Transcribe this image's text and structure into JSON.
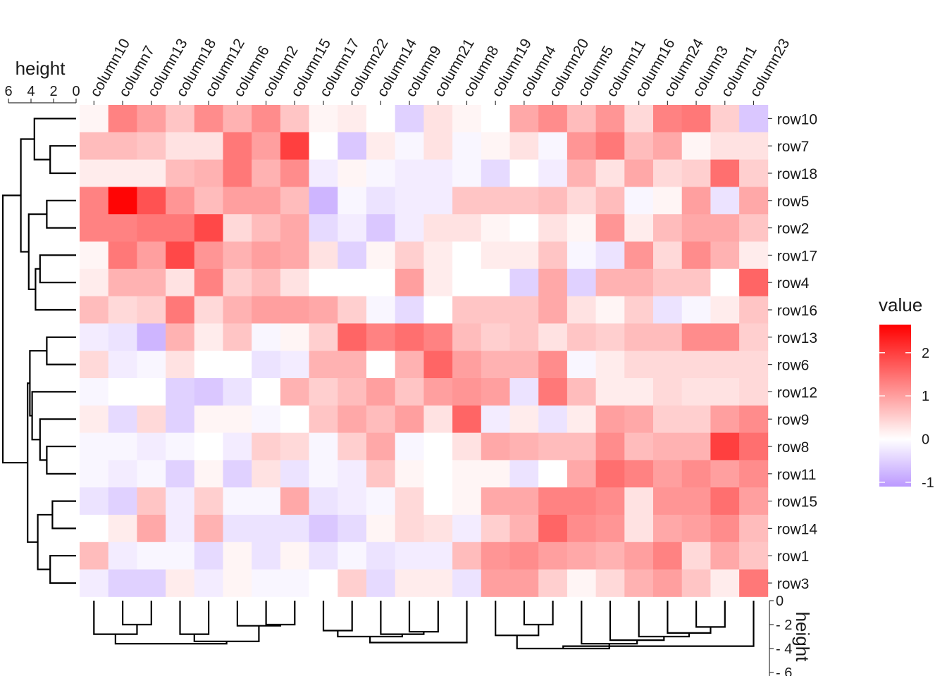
{
  "chart_data": {
    "type": "heatmap",
    "title": "",
    "columns": [
      "column10",
      "column7",
      "column13",
      "column18",
      "column12",
      "column6",
      "column2",
      "column15",
      "column17",
      "column22",
      "column14",
      "column9",
      "column21",
      "column8",
      "column19",
      "column4",
      "column20",
      "column5",
      "column11",
      "column16",
      "column24",
      "column3",
      "column1",
      "column23"
    ],
    "rows": [
      "row10",
      "row7",
      "row18",
      "row5",
      "row2",
      "row17",
      "row4",
      "row16",
      "row13",
      "row6",
      "row12",
      "row9",
      "row8",
      "row11",
      "row15",
      "row14",
      "row1",
      "row3"
    ],
    "values": [
      [
        0.1,
        1.3,
        1.0,
        0.6,
        1.2,
        0.8,
        1.2,
        0.6,
        0.1,
        0.2,
        0.0,
        -0.5,
        0.3,
        0.1,
        0.0,
        0.9,
        1.2,
        0.7,
        1.1,
        0.4,
        1.3,
        1.4,
        0.5,
        -0.6
      ],
      [
        0.7,
        0.7,
        0.6,
        0.3,
        0.3,
        1.4,
        1.0,
        2.0,
        0.0,
        -0.6,
        0.2,
        -0.1,
        0.3,
        -0.1,
        0.1,
        0.3,
        -0.1,
        1.1,
        1.4,
        0.7,
        0.9,
        0.1,
        0.3,
        0.3
      ],
      [
        0.2,
        0.2,
        0.2,
        0.7,
        0.8,
        1.4,
        0.8,
        1.2,
        -0.2,
        0.1,
        -0.1,
        -0.2,
        -0.2,
        -0.1,
        -0.4,
        0.0,
        -0.2,
        0.8,
        0.3,
        0.9,
        0.4,
        0.5,
        1.5,
        0.5
      ],
      [
        1.3,
        2.6,
        1.8,
        1.1,
        0.7,
        1.0,
        1.0,
        0.7,
        -0.8,
        -0.1,
        -0.3,
        -0.2,
        -0.2,
        0.6,
        0.6,
        0.6,
        0.7,
        0.4,
        0.7,
        -0.1,
        0.1,
        1.0,
        -0.3,
        0.9
      ],
      [
        1.3,
        1.3,
        1.4,
        1.4,
        1.9,
        0.4,
        0.7,
        0.9,
        -0.4,
        -0.2,
        -0.6,
        -0.2,
        0.3,
        0.3,
        0.1,
        0.0,
        0.3,
        0.1,
        1.1,
        0.2,
        0.7,
        0.9,
        0.9,
        0.6
      ],
      [
        0.1,
        1.4,
        1.0,
        1.9,
        1.1,
        0.8,
        1.0,
        0.9,
        0.3,
        -0.5,
        0.1,
        0.5,
        0.2,
        0.0,
        0.2,
        0.2,
        0.6,
        -0.1,
        -0.3,
        1.1,
        0.4,
        1.2,
        0.8,
        0.2
      ],
      [
        0.2,
        0.8,
        0.8,
        0.3,
        1.3,
        0.5,
        0.7,
        0.3,
        0.0,
        0.0,
        0.0,
        1.0,
        0.2,
        0.0,
        0.0,
        -0.5,
        0.9,
        -0.5,
        0.8,
        0.8,
        0.6,
        0.6,
        0.0,
        1.6
      ],
      [
        0.7,
        0.4,
        0.5,
        1.4,
        0.4,
        0.8,
        1.0,
        1.0,
        0.9,
        0.5,
        -0.1,
        -0.4,
        0.0,
        0.6,
        0.6,
        0.6,
        0.9,
        0.3,
        0.1,
        0.5,
        -0.3,
        -0.1,
        0.2,
        0.6
      ],
      [
        -0.2,
        -0.3,
        -0.8,
        0.8,
        0.2,
        0.6,
        -0.1,
        0.1,
        0.5,
        1.6,
        1.3,
        1.5,
        1.3,
        0.7,
        0.5,
        0.6,
        0.3,
        0.6,
        0.5,
        0.7,
        0.7,
        1.2,
        1.2,
        0.5
      ],
      [
        0.4,
        -0.2,
        -0.1,
        0.3,
        0.0,
        0.0,
        -0.3,
        -0.2,
        0.8,
        0.8,
        0.0,
        0.8,
        1.6,
        1.0,
        0.8,
        0.8,
        1.2,
        -0.1,
        0.2,
        0.4,
        0.4,
        0.4,
        0.4,
        0.4
      ],
      [
        -0.1,
        0.0,
        0.0,
        -0.5,
        -0.6,
        -0.3,
        0.0,
        0.8,
        0.5,
        0.7,
        1.0,
        0.6,
        1.0,
        1.1,
        1.0,
        -0.3,
        1.4,
        0.7,
        0.2,
        0.2,
        0.4,
        0.3,
        0.3,
        0.4
      ],
      [
        0.2,
        -0.4,
        0.4,
        -0.5,
        0.1,
        0.1,
        -0.1,
        0.0,
        0.6,
        0.9,
        0.7,
        1.0,
        0.3,
        1.6,
        -0.2,
        0.2,
        -0.3,
        0.2,
        1.0,
        0.9,
        0.5,
        0.5,
        1.0,
        1.2
      ],
      [
        -0.1,
        -0.1,
        -0.2,
        -0.1,
        0.0,
        -0.2,
        0.5,
        0.4,
        -0.1,
        0.5,
        0.9,
        -0.1,
        0.0,
        0.3,
        0.9,
        0.8,
        0.7,
        0.7,
        1.2,
        0.7,
        0.8,
        0.8,
        2.0,
        1.5
      ],
      [
        -0.1,
        -0.2,
        -0.1,
        -0.5,
        0.1,
        -0.5,
        0.3,
        -0.3,
        -0.1,
        -0.2,
        0.6,
        0.1,
        0.0,
        0.1,
        0.1,
        -0.3,
        0.0,
        0.9,
        1.5,
        1.3,
        1.0,
        1.2,
        1.0,
        1.2
      ],
      [
        -0.3,
        -0.5,
        0.6,
        -0.2,
        0.5,
        -0.1,
        -0.1,
        0.9,
        -0.3,
        -0.2,
        -0.1,
        0.4,
        0.0,
        0.1,
        0.9,
        0.9,
        1.3,
        1.3,
        1.2,
        0.3,
        1.1,
        1.1,
        1.5,
        1.0
      ],
      [
        0.0,
        0.2,
        0.9,
        -0.2,
        0.8,
        -0.3,
        -0.3,
        -0.3,
        -0.6,
        -0.4,
        0.1,
        0.4,
        0.3,
        -0.2,
        0.5,
        0.8,
        1.6,
        1.2,
        1.1,
        0.3,
        0.9,
        1.0,
        1.2,
        0.7
      ],
      [
        0.7,
        -0.2,
        -0.1,
        -0.1,
        -0.4,
        0.1,
        -0.3,
        0.1,
        -0.3,
        -0.1,
        -0.3,
        -0.2,
        -0.2,
        0.7,
        1.1,
        1.2,
        1.0,
        0.9,
        0.8,
        1.0,
        1.3,
        0.4,
        0.9,
        0.6
      ],
      [
        -0.2,
        -0.5,
        -0.5,
        0.2,
        -0.2,
        0.1,
        -0.1,
        -0.1,
        0.0,
        0.5,
        -0.4,
        0.2,
        0.2,
        -0.3,
        1.0,
        1.0,
        0.5,
        0.1,
        0.4,
        0.8,
        1.0,
        0.6,
        0.2,
        1.4
      ]
    ],
    "legend": {
      "title": "value",
      "ticks": [
        2,
        1,
        0,
        -1
      ],
      "range": [
        -1.1,
        2.65
      ],
      "colors": {
        "low": "#bb99ff",
        "mid": "#ffffff",
        "high": "#ff0000"
      }
    },
    "row_dendrogram": {
      "axis_title": "height",
      "ticks": [
        6,
        4,
        2,
        0
      ],
      "merges": [
        [
          "row7",
          "row18",
          2.3
        ],
        [
          "row10",
          "row7+row18",
          3.7
        ],
        [
          "row5",
          "row2",
          2.6
        ],
        [
          "row17",
          "row4",
          3.2
        ],
        [
          "row17+row4",
          "row16",
          3.6
        ],
        [
          "row5+row2",
          "row17+row4+row16",
          4.2
        ],
        [
          "row10+row7+row18",
          "row5+row2+row17+row4+row16",
          4.9
        ],
        [
          "row13",
          "row6",
          2.6
        ],
        [
          "row8",
          "row11",
          2.6
        ],
        [
          "row9",
          "row8+row11",
          3.2
        ],
        [
          "row12",
          "row9+row8+row11",
          3.9
        ],
        [
          "row13+row6",
          "row12+row9+row8+row11",
          4.1
        ],
        [
          "row15",
          "row14",
          2.1
        ],
        [
          "row1",
          "row3",
          2.3
        ],
        [
          "row15+row14",
          "row1+row3",
          3.4
        ],
        [
          "row13..row11",
          "row15..row3",
          4.3
        ],
        [
          "row10..row16",
          "row13..row3",
          6.5
        ]
      ]
    },
    "column_dendrogram": {
      "axis_title": "height",
      "ticks": [
        0,
        -2,
        -4,
        -6
      ],
      "merges": [
        [
          "column7",
          "column13",
          -2.0
        ],
        [
          "column10",
          "column7+column13",
          -2.8
        ],
        [
          "column18",
          "column12",
          -2.8
        ],
        [
          "column2",
          "column15",
          -2.0
        ],
        [
          "column6",
          "column2+column15",
          -2.1
        ],
        [
          "column18+column12",
          "column6+column2+column15",
          -3.4
        ],
        [
          "column10+column7+column13",
          "column18..column15",
          -3.6
        ],
        [
          "column17",
          "column22",
          -2.5
        ],
        [
          "column9",
          "column21",
          -2.6
        ],
        [
          "column14",
          "column9+column21",
          -2.8
        ],
        [
          "column17+column22",
          "column14+column9+column21",
          -3.0
        ],
        [
          "column8",
          "column17..column21",
          -3.5
        ],
        [
          "column4",
          "column20",
          -2.0
        ],
        [
          "column19",
          "column4+column20",
          -2.9
        ],
        [
          "column3",
          "column1",
          -2.2
        ],
        [
          "column24",
          "column3+column1",
          -2.7
        ],
        [
          "column16",
          "column24+column3+column1",
          -3.0
        ],
        [
          "column11",
          "column16..column1",
          -3.3
        ],
        [
          "column5",
          "column11..column1",
          -3.6
        ],
        [
          "column19+column4+column20",
          "column5..column1",
          -4.0
        ],
        [
          "column19..column1",
          "column23",
          -3.8
        ],
        [
          "column17..column8",
          "column19..column23",
          -5.0
        ],
        [
          "column10..column15",
          "column17..column23",
          -5.9
        ]
      ]
    }
  }
}
